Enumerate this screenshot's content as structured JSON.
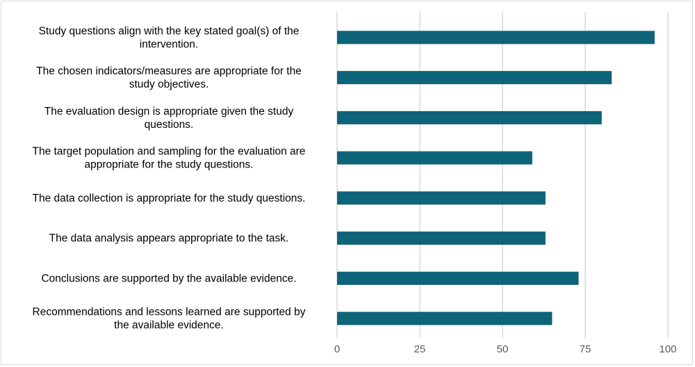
{
  "chart_data": {
    "type": "bar",
    "orientation": "horizontal",
    "title": "",
    "xlabel": "",
    "ylabel": "",
    "categories": [
      "Study questions align with the key stated goal(s) of the intervention.",
      "The chosen indicators/measures are appropriate for the study objectives.",
      "The evaluation design is appropriate given the study questions.",
      "The target population and sampling for the evaluation are appropriate for the study questions.",
      "The data collection is appropriate for the study questions.",
      "The data analysis appears appropriate to the task.",
      "Conclusions are supported by the available evidence.",
      "Recommendations and lessons learned are supported by the available evidence."
    ],
    "label_lines": [
      [
        "Study questions align with the key stated goal(s) of the",
        "intervention."
      ],
      [
        "The chosen indicators/measures are appropriate for the",
        "study objectives."
      ],
      [
        "The evaluation design is appropriate given the study",
        "questions."
      ],
      [
        "The target population and sampling for the evaluation are",
        "appropriate for the study questions."
      ],
      [
        "The data collection is appropriate for the study questions."
      ],
      [
        "The data analysis appears appropriate to the task."
      ],
      [
        "Conclusions are supported by the available evidence."
      ],
      [
        "Recommendations and lessons learned are supported by",
        "the available evidence."
      ]
    ],
    "values": [
      96,
      83,
      80,
      59,
      63,
      63,
      73,
      65
    ],
    "xlim": [
      0,
      100
    ],
    "xticks": [
      0,
      25,
      50,
      75,
      100
    ],
    "grid": true,
    "legend": "none",
    "bar_color": "#0e6478",
    "grid_color": "#d9d9d9"
  }
}
